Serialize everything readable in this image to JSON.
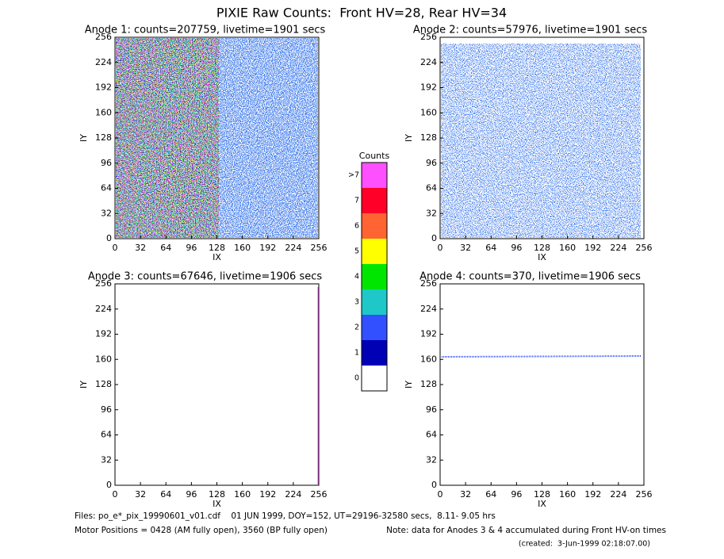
{
  "title": "PIXIE Raw Counts:  Front HV=28, Rear HV=34",
  "chart_data": [
    {
      "type": "heatmap",
      "title": "Anode 1: counts=207759, livetime=1901 secs",
      "xlabel": "IX",
      "ylabel": "IY",
      "xlim": [
        0,
        256
      ],
      "ylim": [
        0,
        256
      ],
      "xticks": [
        0,
        32,
        64,
        96,
        128,
        160,
        192,
        224,
        256
      ],
      "yticks": [
        0,
        32,
        64,
        96,
        128,
        160,
        192,
        224,
        256
      ]
    },
    {
      "type": "heatmap",
      "title": "Anode 2: counts=57976, livetime=1901 secs",
      "xlabel": "IX",
      "ylabel": "IY",
      "xlim": [
        0,
        256
      ],
      "ylim": [
        0,
        256
      ],
      "xticks": [
        0,
        32,
        64,
        96,
        128,
        160,
        192,
        224,
        256
      ],
      "yticks": [
        0,
        32,
        64,
        96,
        128,
        160,
        192,
        224,
        256
      ]
    },
    {
      "type": "heatmap",
      "title": "Anode 3: counts=67646, livetime=1906 secs",
      "xlabel": "IX",
      "ylabel": "IY",
      "xlim": [
        0,
        256
      ],
      "ylim": [
        0,
        256
      ],
      "xticks": [
        0,
        32,
        64,
        96,
        128,
        160,
        192,
        224,
        256
      ],
      "yticks": [
        0,
        32,
        64,
        96,
        128,
        160,
        192,
        224,
        256
      ]
    },
    {
      "type": "heatmap",
      "title": "Anode 4: counts=370, livetime=1906 secs",
      "xlabel": "IX",
      "ylabel": "IY",
      "xlim": [
        0,
        256
      ],
      "ylim": [
        0,
        256
      ],
      "xticks": [
        0,
        32,
        64,
        96,
        128,
        160,
        192,
        224,
        256
      ],
      "yticks": [
        0,
        32,
        64,
        96,
        128,
        160,
        192,
        224,
        256
      ]
    }
  ],
  "colorbar": {
    "title": "Counts",
    "labels": [
      "0",
      "1",
      "2",
      "3",
      "4",
      "5",
      "6",
      "7",
      ">7"
    ],
    "colors": [
      "#ffffff",
      "#0000b4",
      "#3250ff",
      "#1ec8c8",
      "#00e600",
      "#ffff00",
      "#ff6432",
      "#ff0028",
      "#ff50ff"
    ]
  },
  "footer": {
    "files": "Files: po_e*_pix_19990601_v01.cdf    01 JUN 1999, DOY=152, UT=29196-32580 secs,  8.11- 9.05 hrs",
    "motor": "Motor Positions = 0428 (AM fully open), 3560 (BP fully open)",
    "note": "Note: data for Anodes 3 & 4 accumulated during Front HV-on times",
    "created": "(created:  3-Jun-1999 02:18:07.00)"
  }
}
